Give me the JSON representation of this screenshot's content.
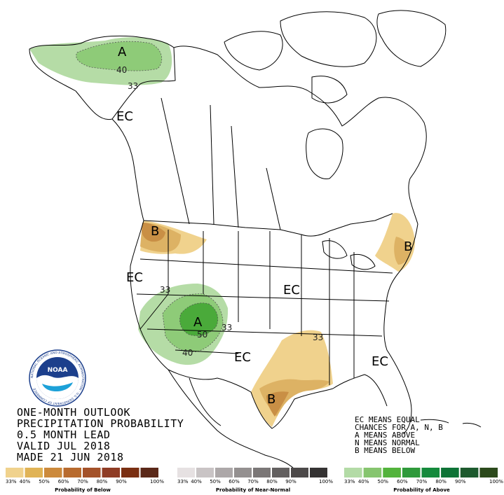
{
  "title_lines": [
    "ONE-MONTH OUTLOOK",
    "PRECIPITATION PROBABILITY",
    "0.5 MONTH LEAD",
    "VALID JUL 2018",
    "MADE 21 JUN 2018"
  ],
  "legend_text_lines": [
    "EC MEANS EQUAL",
    "CHANCES FOR A, N, B",
    "A MEANS ABOVE",
    "N MEANS NORMAL",
    "B MEANS BELOW"
  ],
  "map_labels": {
    "alaska_a": "A",
    "alaska_40": "40",
    "alaska_33": "33",
    "ec_north": "EC",
    "pnw_b": "B",
    "ec_west": "EC",
    "sw_33": "33",
    "sw_a": "A",
    "sw_50": "50",
    "sw_33b": "33",
    "sw_40": "40",
    "ec_central": "EC",
    "ec_south": "EC",
    "se_33": "33",
    "gulf_b": "B",
    "ec_southeast": "EC",
    "ne_b": "B"
  },
  "scales": [
    {
      "caption": "Probability of Below",
      "colors": [
        "#f0d28d",
        "#e0b356",
        "#cc8a3c",
        "#b86b2e",
        "#a4522a",
        "#8f3c25",
        "#7a2f12",
        "#5a2818"
      ],
      "ticks": [
        "33%",
        "40%",
        "50%",
        "60%",
        "70%",
        "80%",
        "90%",
        "100%"
      ]
    },
    {
      "caption": "Probability of Near-Normal",
      "colors": [
        "#e6e1e2",
        "#c9c4c5",
        "#ada8a9",
        "#949090",
        "#7b7777",
        "#636060",
        "#4c4949",
        "#353333"
      ],
      "ticks": [
        "33%",
        "40%",
        "50%",
        "60%",
        "70%",
        "80%",
        "90%",
        "100%"
      ]
    },
    {
      "caption": "Probability of Above",
      "colors": [
        "#b3dba6",
        "#86c56f",
        "#53b33c",
        "#2f9a3b",
        "#158a3c",
        "#0e7336",
        "#1d5a2e",
        "#2c4a1c"
      ],
      "ticks": [
        "33%",
        "40%",
        "50%",
        "60%",
        "70%",
        "80%",
        "90%",
        "100%"
      ]
    }
  ],
  "colors": {
    "below_33": "#f0d28d",
    "below_40": "#ddb264",
    "below_50": "#c98f45",
    "above_33": "#b5dca6",
    "above_40": "#8ecb78",
    "above_50": "#4aaa3a"
  },
  "logo": {
    "center_text": "NOAA",
    "ring_text": "NATIONAL OCEANIC AND ATMOSPHERIC ADMINISTRATION · U.S. DEPARTMENT OF COMMERCE"
  }
}
